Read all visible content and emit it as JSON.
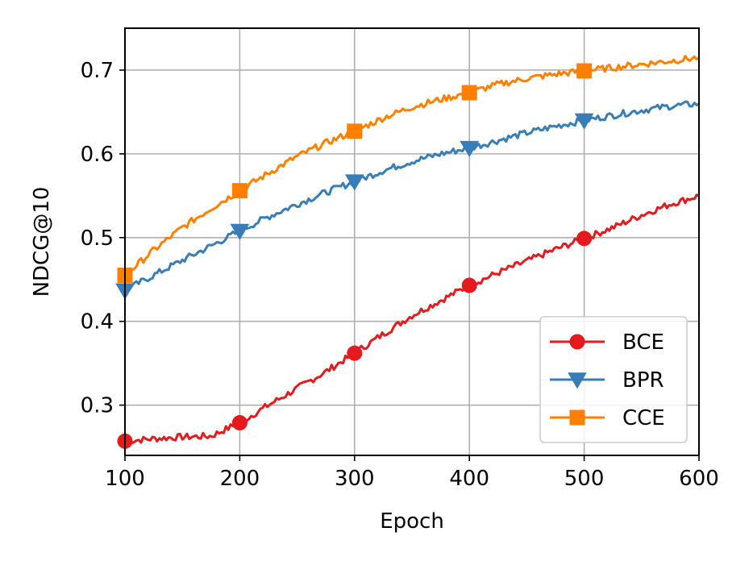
{
  "chart_data": {
    "type": "line",
    "xlabel": "Epoch",
    "ylabel": "NDCG@10",
    "xlim": [
      100,
      600
    ],
    "ylim": [
      0.24,
      0.75
    ],
    "xticks": [
      100,
      200,
      300,
      400,
      500,
      600
    ],
    "yticks": [
      0.3,
      0.4,
      0.5,
      0.6,
      0.7
    ],
    "xtick_labels": [
      "100",
      "200",
      "300",
      "400",
      "500",
      "600"
    ],
    "ytick_labels": [
      "0.3",
      "0.4",
      "0.5",
      "0.6",
      "0.7"
    ],
    "grid": true,
    "legend_position": "bottom-right",
    "marker_x": [
      100,
      200,
      300,
      400,
      500
    ],
    "series": [
      {
        "name": "BCE",
        "color": "#e41a1c",
        "marker": "circle",
        "x": [
          100,
          125,
          150,
          175,
          200,
          225,
          250,
          275,
          300,
          325,
          350,
          375,
          400,
          425,
          450,
          475,
          500,
          525,
          550,
          575,
          600
        ],
        "y": [
          0.257,
          0.26,
          0.262,
          0.263,
          0.279,
          0.3,
          0.32,
          0.34,
          0.362,
          0.385,
          0.407,
          0.425,
          0.443,
          0.458,
          0.472,
          0.486,
          0.499,
          0.512,
          0.527,
          0.54,
          0.55
        ]
      },
      {
        "name": "BPR",
        "color": "#377eb8",
        "marker": "triangle-down",
        "x": [
          100,
          125,
          150,
          175,
          200,
          225,
          250,
          275,
          300,
          325,
          350,
          375,
          400,
          425,
          450,
          475,
          500,
          525,
          550,
          575,
          600
        ],
        "y": [
          0.437,
          0.455,
          0.473,
          0.49,
          0.508,
          0.525,
          0.54,
          0.554,
          0.567,
          0.58,
          0.591,
          0.6,
          0.607,
          0.616,
          0.625,
          0.633,
          0.64,
          0.646,
          0.652,
          0.657,
          0.66
        ]
      },
      {
        "name": "CCE",
        "color": "#ff7f00",
        "marker": "square",
        "x": [
          100,
          125,
          150,
          175,
          200,
          225,
          250,
          275,
          300,
          325,
          350,
          375,
          400,
          425,
          450,
          475,
          500,
          525,
          550,
          575,
          600
        ],
        "y": [
          0.455,
          0.485,
          0.512,
          0.535,
          0.556,
          0.577,
          0.597,
          0.613,
          0.627,
          0.643,
          0.656,
          0.665,
          0.673,
          0.683,
          0.69,
          0.695,
          0.699,
          0.703,
          0.707,
          0.711,
          0.715
        ]
      }
    ]
  }
}
